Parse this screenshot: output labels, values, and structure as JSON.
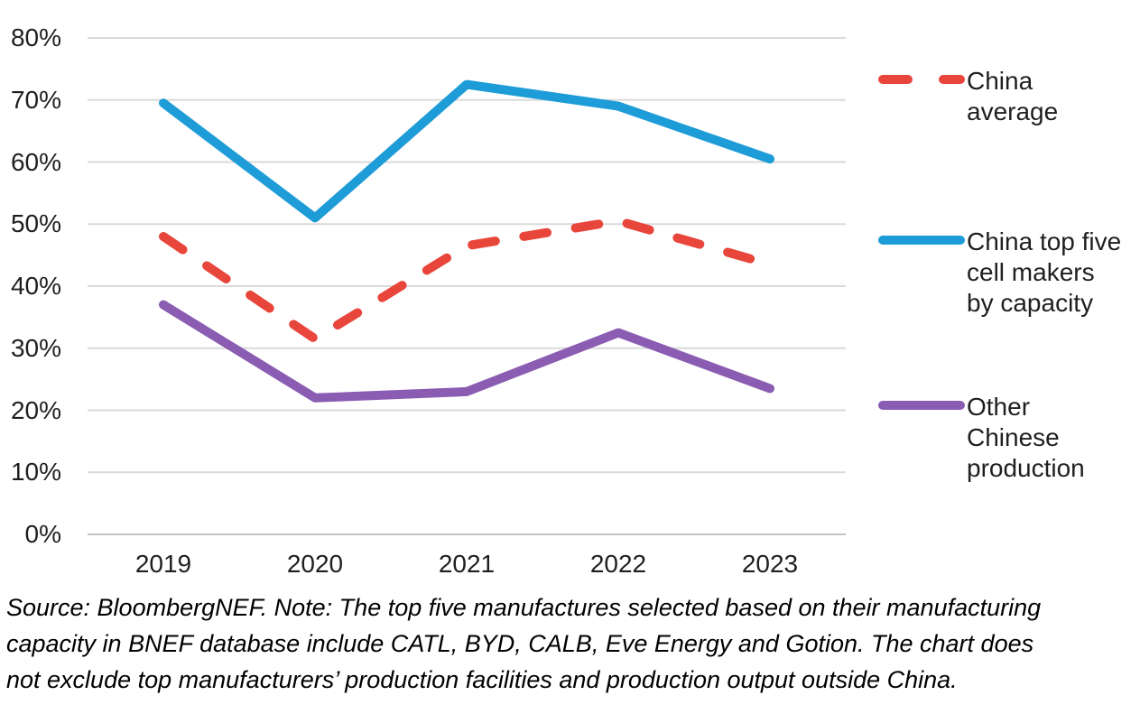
{
  "chart_data": {
    "type": "line",
    "categories": [
      "2019",
      "2020",
      "2021",
      "2022",
      "2023"
    ],
    "series": [
      {
        "name": "China average",
        "legend_lines": [
          "China",
          "average"
        ],
        "color": "#E8453B",
        "line_style": "dashed",
        "values": [
          48,
          31.5,
          46.5,
          50.5,
          43.5
        ]
      },
      {
        "name": "China top five cell makers by capacity",
        "legend_lines": [
          "China top five",
          "cell makers",
          "by capacity"
        ],
        "color": "#1E9CD7",
        "line_style": "solid",
        "values": [
          69.5,
          51,
          72.5,
          69,
          60.5
        ]
      },
      {
        "name": "Other Chinese production",
        "legend_lines": [
          "Other",
          "Chinese",
          "production"
        ],
        "color": "#8A5CB2",
        "line_style": "solid",
        "values": [
          37,
          22,
          23,
          32.5,
          23.5
        ]
      }
    ],
    "title": "",
    "xlabel": "",
    "ylabel": "",
    "ylim": [
      0,
      80
    ],
    "y_tick_labels": [
      "0%",
      "10%",
      "20%",
      "30%",
      "40%",
      "50%",
      "60%",
      "70%",
      "80%"
    ],
    "grid": true,
    "legend_position": "right"
  },
  "footer": {
    "lines": [
      "Source: BloombergNEF. Note: The top five manufactures selected based on their manufacturing",
      "capacity in BNEF database include CATL, BYD, CALB, Eve Energy and Gotion. The chart does",
      "not exclude top manufacturers’ production facilities and production output outside China."
    ]
  }
}
